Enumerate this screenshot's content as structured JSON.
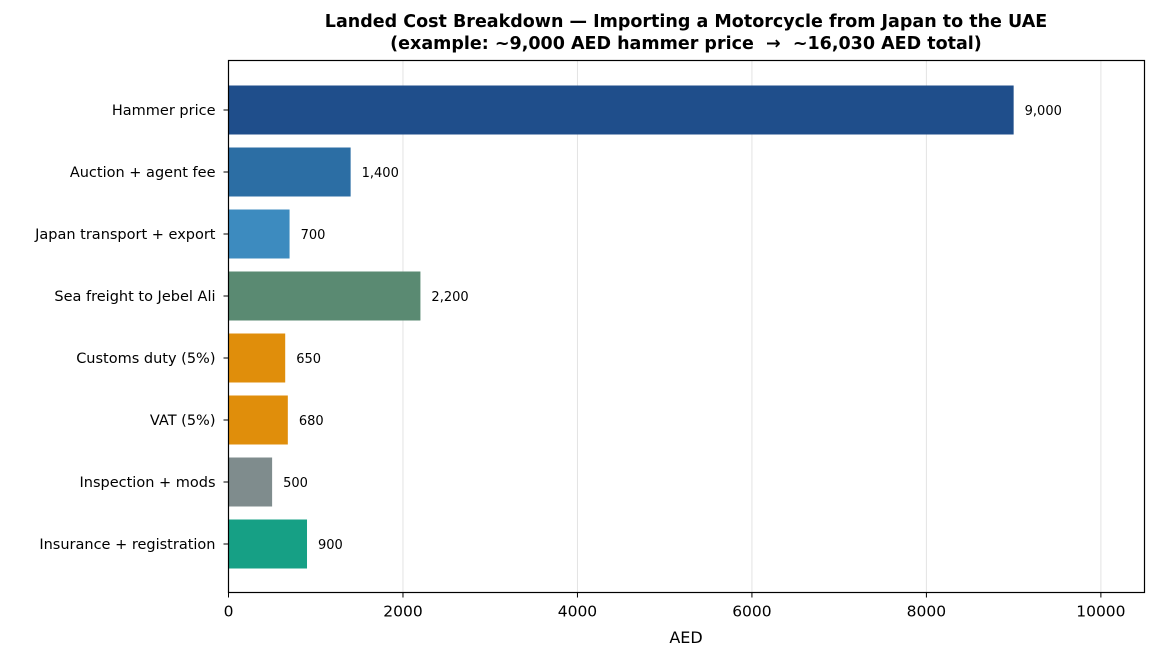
{
  "chart_data": {
    "type": "bar",
    "orientation": "horizontal",
    "title": "Landed Cost Breakdown — Importing a Motorcycle from Japan to the UAE",
    "subtitle": "(example: ~9,000 AED hammer price  →  ~16,030 AED total)",
    "xlabel": "AED",
    "ylabel": "",
    "xlim": [
      0,
      10500
    ],
    "xticks": [
      0,
      2000,
      4000,
      6000,
      8000,
      10000
    ],
    "xtick_labels": [
      "0",
      "2000",
      "4000",
      "6000",
      "8000",
      "10000"
    ],
    "grid": "vertical",
    "categories": [
      "Hammer price",
      "Auction + agent fee",
      "Japan transport + export",
      "Sea freight to Jebel Ali",
      "Customs duty (5%)",
      "VAT (5%)",
      "Inspection + mods",
      "Insurance + registration"
    ],
    "values": [
      9000,
      1400,
      700,
      2200,
      650,
      680,
      500,
      900
    ],
    "value_labels": [
      "9,000",
      "1,400",
      "700",
      "2,200",
      "650",
      "680",
      "500",
      "900"
    ],
    "colors": [
      "#1f4e8b",
      "#2c6ea4",
      "#3d8bbf",
      "#5a8a72",
      "#e08e0b",
      "#e08e0b",
      "#7f8c8d",
      "#16a085"
    ]
  }
}
